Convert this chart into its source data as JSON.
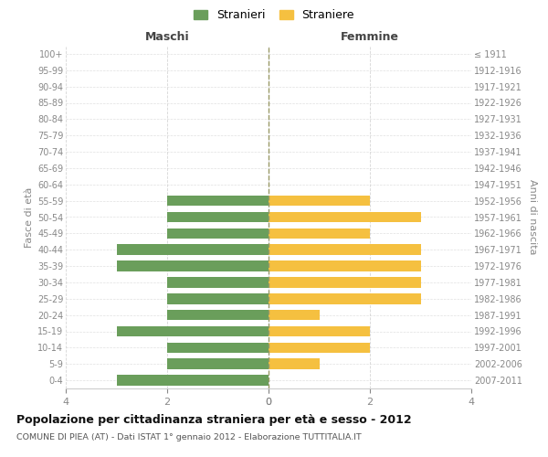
{
  "age_groups": [
    "100+",
    "95-99",
    "90-94",
    "85-89",
    "80-84",
    "75-79",
    "70-74",
    "65-69",
    "60-64",
    "55-59",
    "50-54",
    "45-49",
    "40-44",
    "35-39",
    "30-34",
    "25-29",
    "20-24",
    "15-19",
    "10-14",
    "5-9",
    "0-4"
  ],
  "birth_years": [
    "≤ 1911",
    "1912-1916",
    "1917-1921",
    "1922-1926",
    "1927-1931",
    "1932-1936",
    "1937-1941",
    "1942-1946",
    "1947-1951",
    "1952-1956",
    "1957-1961",
    "1962-1966",
    "1967-1971",
    "1972-1976",
    "1977-1981",
    "1982-1986",
    "1987-1991",
    "1992-1996",
    "1997-2001",
    "2002-2006",
    "2007-2011"
  ],
  "males": [
    0,
    0,
    0,
    0,
    0,
    0,
    0,
    0,
    0,
    2,
    2,
    2,
    3,
    3,
    2,
    2,
    2,
    3,
    2,
    2,
    3
  ],
  "females": [
    0,
    0,
    0,
    0,
    0,
    0,
    0,
    0,
    0,
    2,
    3,
    2,
    3,
    3,
    3,
    3,
    1,
    2,
    2,
    1,
    0
  ],
  "male_color": "#6a9e5b",
  "female_color": "#f5c040",
  "background_color": "#ffffff",
  "grid_color": "#cccccc",
  "title": "Popolazione per cittadinanza straniera per età e sesso - 2012",
  "subtitle": "COMUNE DI PIEA (AT) - Dati ISTAT 1° gennaio 2012 - Elaborazione TUTTITALIA.IT",
  "xlabel_left": "Maschi",
  "xlabel_right": "Femmine",
  "ylabel_left": "Fasce di età",
  "ylabel_right": "Anni di nascita",
  "legend_male": "Stranieri",
  "legend_female": "Straniere",
  "xlim": 4,
  "center_line_color": "#999966"
}
